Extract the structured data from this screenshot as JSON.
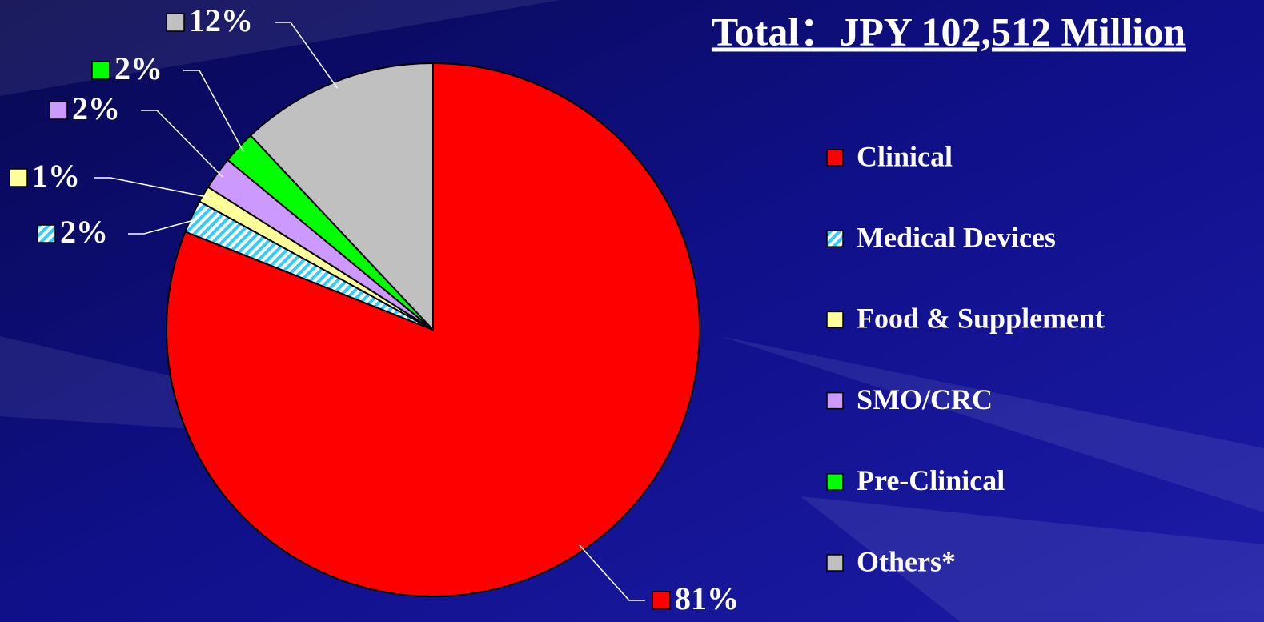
{
  "chart_data": {
    "type": "pie",
    "title": "Total：JPY 102,512 Million",
    "categories": [
      "Clinical",
      "Medical Devices",
      "Food & Supplement",
      "SMO/CRC",
      "Pre-Clinical",
      "Others*"
    ],
    "values": [
      81,
      2,
      1,
      2,
      2,
      12
    ],
    "value_labels": [
      "81%",
      "2%",
      "1%",
      "2%",
      "2%",
      "12%"
    ],
    "colors": [
      "#ff0000",
      "#33ccff",
      "#ffff99",
      "#cc99ff",
      "#00ff00",
      "#c0c0c0"
    ],
    "patterns": [
      "solid",
      "diagonal-stripes",
      "solid",
      "solid",
      "solid",
      "solid"
    ],
    "legend": "right"
  }
}
